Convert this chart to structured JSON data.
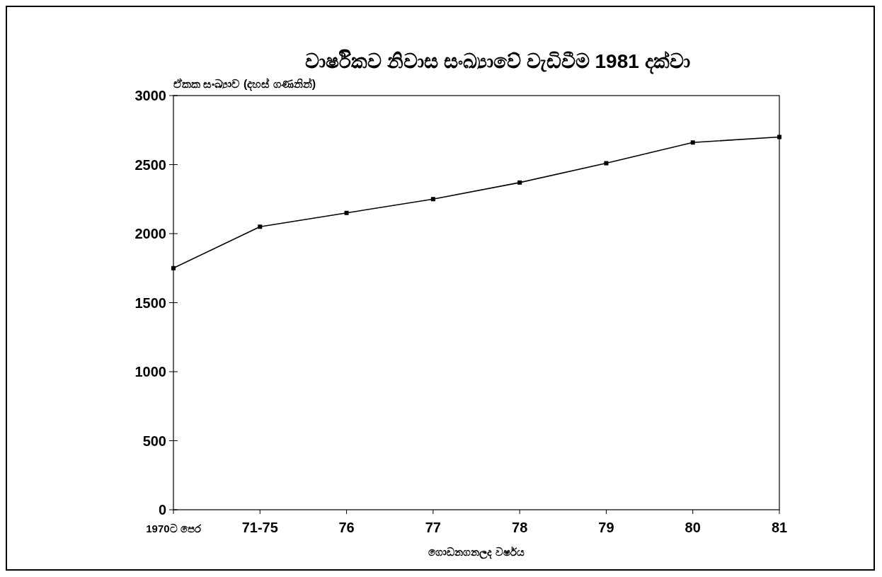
{
  "chart_data": {
    "type": "line",
    "title": "වාර්ෂිකව නිවාස සංඛ්‍යාවේ වැඩිවීම 1981 දක්වා",
    "ylabel": "ඒකක සංඛ්‍යාව (දහස් ගණනින්)",
    "xlabel": "ගොඩනගනලද වර්ෂය",
    "categories": [
      "1970ට පෙර",
      "71-75",
      "76",
      "77",
      "78",
      "79",
      "80",
      "81"
    ],
    "series": [
      {
        "color": "#000000",
        "values": [
          1750,
          2050,
          2150,
          2250,
          2370,
          2510,
          2660,
          2700
        ]
      }
    ],
    "ylim": [
      0,
      3000
    ],
    "yticks": [
      0,
      500,
      1000,
      1500,
      2000,
      2500,
      3000
    ],
    "grid": false,
    "marker": "square",
    "line_style": "solid"
  }
}
